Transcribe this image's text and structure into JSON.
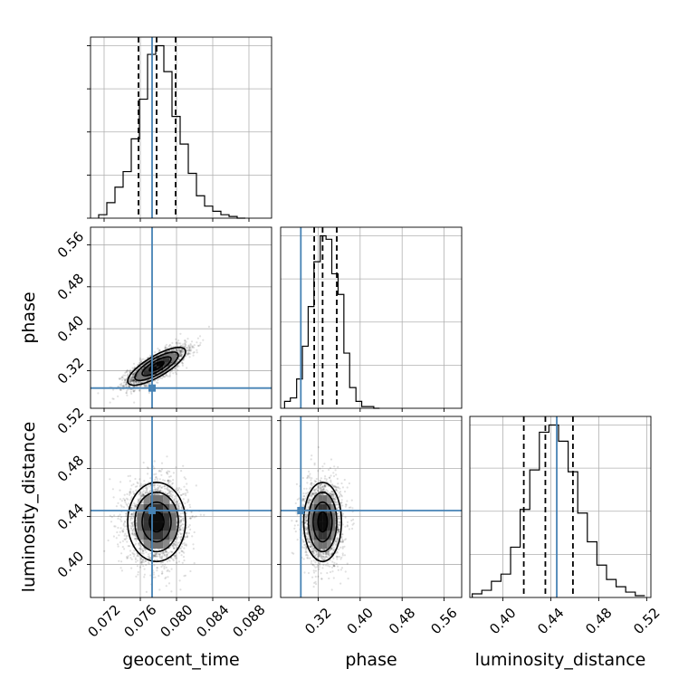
{
  "chart_data": {
    "type": "corner",
    "parameters": [
      "geocent_time",
      "phase",
      "luminosity_distance"
    ],
    "truths": {
      "geocent_time": 0.0773,
      "phase": 0.287,
      "luminosity_distance": 0.445
    },
    "accent_color": "#4682b4",
    "quantile_color": "#000000",
    "grid": true,
    "diagonal": [
      {
        "param": "geocent_time",
        "xlim": [
          0.0705,
          0.0905
        ],
        "ticks": [
          0.072,
          0.076,
          0.08,
          0.084,
          0.088
        ],
        "tick_labels": [
          "0.072",
          "0.076",
          "0.080",
          "0.084",
          "0.088"
        ],
        "quantiles": [
          0.0758,
          0.0778,
          0.0799
        ],
        "bin_edges": [
          0.0714,
          0.0723,
          0.0732,
          0.0741,
          0.075,
          0.0759,
          0.0768,
          0.0777,
          0.0786,
          0.0795,
          0.0804,
          0.0813,
          0.0822,
          0.0831,
          0.084,
          0.0849,
          0.0858,
          0.0867,
          0.0876
        ],
        "counts": [
          2,
          9,
          18,
          27,
          46,
          69,
          95,
          100,
          85,
          59,
          43,
          26,
          13,
          7,
          4,
          2,
          1,
          0
        ]
      },
      {
        "param": "phase",
        "xlim": [
          0.2485,
          0.5935
        ],
        "ticks": [
          0.32,
          0.4,
          0.48,
          0.56
        ],
        "tick_labels": [
          "0.32",
          "0.40",
          "0.48",
          "0.56"
        ],
        "quantiles": [
          0.3125,
          0.3285,
          0.3555
        ],
        "bin_edges": [
          0.256,
          0.267,
          0.279,
          0.29,
          0.301,
          0.312,
          0.324,
          0.335,
          0.346,
          0.358,
          0.369,
          0.38,
          0.392,
          0.403,
          0.414,
          0.426,
          0.437
        ],
        "counts": [
          4,
          6,
          17,
          36,
          59,
          85,
          100,
          98,
          78,
          66,
          32,
          12,
          4,
          1,
          1,
          0
        ]
      },
      {
        "param": "luminosity_distance",
        "xlim": [
          0.3725,
          0.5235
        ],
        "ticks": [
          0.4,
          0.44,
          0.48,
          0.52
        ],
        "tick_labels": [
          "0.40",
          "0.44",
          "0.48",
          "0.52"
        ],
        "quantiles": [
          0.4175,
          0.4355,
          0.4585
        ],
        "bin_edges": [
          0.3745,
          0.3825,
          0.3905,
          0.3985,
          0.4065,
          0.4145,
          0.4225,
          0.4305,
          0.4385,
          0.4465,
          0.4545,
          0.4625,
          0.4705,
          0.4785,
          0.4865,
          0.4945,
          0.5025,
          0.5105,
          0.5185
        ],
        "counts": [
          2,
          4,
          9,
          13,
          28,
          49,
          71,
          92,
          96,
          87,
          70,
          47,
          31,
          18,
          10,
          6,
          3,
          1
        ]
      }
    ],
    "off_diagonal": [
      {
        "x": "geocent_time",
        "y": "phase",
        "ylim": [
          0.2485,
          0.5935
        ],
        "yticks": [
          0.32,
          0.4,
          0.48,
          0.56
        ],
        "ytick_labels": [
          "0.32",
          "0.40",
          "0.48",
          "0.56"
        ],
        "mean": [
          0.0778,
          0.3285
        ],
        "std": [
          0.0016,
          0.018
        ],
        "correlation": 0.78
      },
      {
        "x": "geocent_time",
        "y": "luminosity_distance",
        "ylim": [
          0.3725,
          0.5235
        ],
        "yticks": [
          0.4,
          0.44,
          0.48,
          0.52
        ],
        "ytick_labels": [
          "0.40",
          "0.44",
          "0.48",
          "0.52"
        ],
        "mean": [
          0.0778,
          0.4355
        ],
        "std": [
          0.0016,
          0.0165
        ],
        "correlation": 0.0
      },
      {
        "x": "phase",
        "y": "luminosity_distance",
        "ylim": [
          0.3725,
          0.5235
        ],
        "yticks": [
          0.4,
          0.44,
          0.48,
          0.52
        ],
        "ytick_labels": [
          "0.40",
          "0.44",
          "0.48",
          "0.52"
        ],
        "mean": [
          0.3285,
          0.4355
        ],
        "std": [
          0.018,
          0.0165
        ],
        "correlation": 0.0
      }
    ],
    "xlabel_row": [
      "geocent_time",
      "phase",
      "luminosity_distance"
    ],
    "ylabel_column": [
      "phase",
      "luminosity_distance"
    ]
  }
}
